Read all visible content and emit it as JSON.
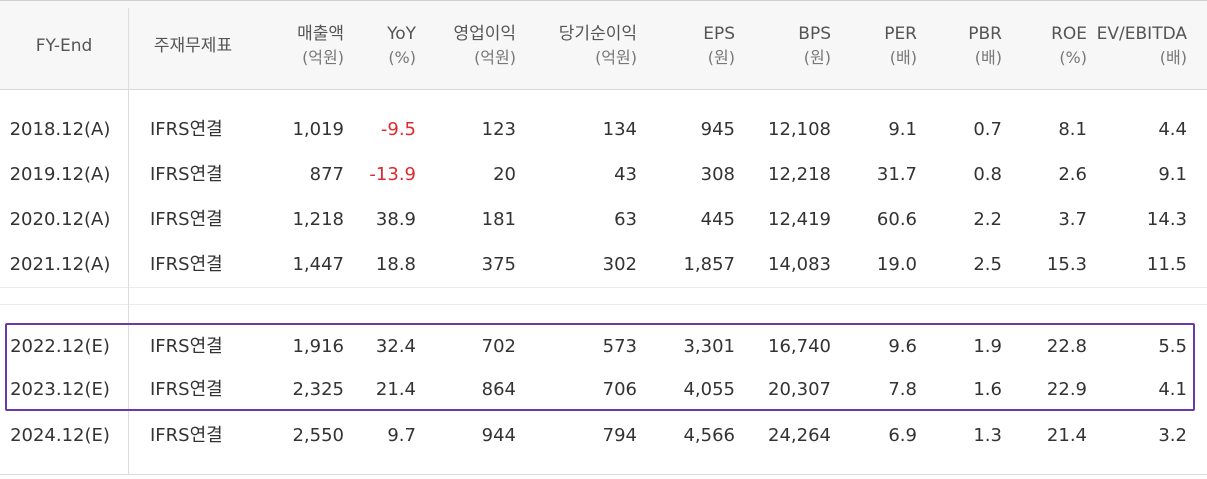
{
  "colors": {
    "negative": "#e0282e",
    "highlight_border": "#6a3aa8",
    "header_bg": "#f7f7f7"
  },
  "headers": {
    "fy": "FY-End",
    "type": "주재무제표",
    "sales": {
      "label": "매출액",
      "unit": "(억원)"
    },
    "yoy": {
      "label": "YoY",
      "unit": "(%)"
    },
    "op": {
      "label": "영업이익",
      "unit": "(억원)"
    },
    "net": {
      "label": "당기순이익",
      "unit": "(억원)"
    },
    "eps": {
      "label": "EPS",
      "unit": "(원)"
    },
    "bps": {
      "label": "BPS",
      "unit": "(원)"
    },
    "per": {
      "label": "PER",
      "unit": "(배)"
    },
    "pbr": {
      "label": "PBR",
      "unit": "(배)"
    },
    "roe": {
      "label": "ROE",
      "unit": "(%)"
    },
    "ev": {
      "label": "EV/EBITDA",
      "unit": "(배)"
    }
  },
  "rows": [
    {
      "fy": "2018.12(A)",
      "type": "IFRS연결",
      "sales": "1,019",
      "yoy": "-9.5",
      "op": "123",
      "net": "134",
      "eps": "945",
      "bps": "12,108",
      "per": "9.1",
      "pbr": "0.7",
      "roe": "8.1",
      "ev": "4.4"
    },
    {
      "fy": "2019.12(A)",
      "type": "IFRS연결",
      "sales": "877",
      "yoy": "-13.9",
      "op": "20",
      "net": "43",
      "eps": "308",
      "bps": "12,218",
      "per": "31.7",
      "pbr": "0.8",
      "roe": "2.6",
      "ev": "9.1"
    },
    {
      "fy": "2020.12(A)",
      "type": "IFRS연결",
      "sales": "1,218",
      "yoy": "38.9",
      "op": "181",
      "net": "63",
      "eps": "445",
      "bps": "12,419",
      "per": "60.6",
      "pbr": "2.2",
      "roe": "3.7",
      "ev": "14.3"
    },
    {
      "fy": "2021.12(A)",
      "type": "IFRS연결",
      "sales": "1,447",
      "yoy": "18.8",
      "op": "375",
      "net": "302",
      "eps": "1,857",
      "bps": "14,083",
      "per": "19.0",
      "pbr": "2.5",
      "roe": "15.3",
      "ev": "11.5"
    },
    {
      "fy": "2022.12(E)",
      "type": "IFRS연결",
      "sales": "1,916",
      "yoy": "32.4",
      "op": "702",
      "net": "573",
      "eps": "3,301",
      "bps": "16,740",
      "per": "9.6",
      "pbr": "1.9",
      "roe": "22.8",
      "ev": "5.5"
    },
    {
      "fy": "2023.12(E)",
      "type": "IFRS연결",
      "sales": "2,325",
      "yoy": "21.4",
      "op": "864",
      "net": "706",
      "eps": "4,055",
      "bps": "20,307",
      "per": "7.8",
      "pbr": "1.6",
      "roe": "22.9",
      "ev": "4.1"
    },
    {
      "fy": "2024.12(E)",
      "type": "IFRS연결",
      "sales": "2,550",
      "yoy": "9.7",
      "op": "944",
      "net": "794",
      "eps": "4,566",
      "bps": "24,264",
      "per": "6.9",
      "pbr": "1.3",
      "roe": "21.4",
      "ev": "3.2"
    }
  ]
}
